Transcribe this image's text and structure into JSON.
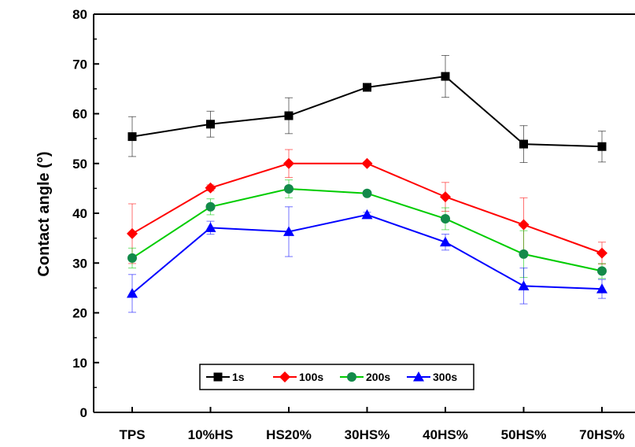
{
  "chart_data": {
    "type": "line",
    "title": "",
    "xlabel": "",
    "ylabel": "Contact angle (°)",
    "ylim": [
      0,
      80
    ],
    "yticks": [
      0,
      10,
      20,
      30,
      40,
      50,
      60,
      70,
      80
    ],
    "grid": false,
    "legend_position": "bottom-center",
    "categories": [
      "TPS",
      "10%HS",
      "HS20%",
      "30HS%",
      "40HS%",
      "50HS%",
      "70HS%"
    ],
    "series": [
      {
        "name": "1s",
        "color": "#000000",
        "marker": "square",
        "values": [
          55.4,
          57.9,
          59.6,
          65.3,
          67.5,
          53.9,
          53.4
        ],
        "errors": [
          4.0,
          2.6,
          3.6,
          0.6,
          4.2,
          3.7,
          3.1
        ]
      },
      {
        "name": "100s",
        "color": "#ff0000",
        "marker": "diamond",
        "values": [
          35.9,
          45.1,
          50.0,
          50.0,
          43.3,
          37.7,
          32.0
        ],
        "errors": [
          6.0,
          0.6,
          2.8,
          0.3,
          2.9,
          5.4,
          2.2
        ]
      },
      {
        "name": "200s",
        "color": "#00cc00",
        "marker_color": "#138a4a",
        "marker": "circle",
        "values": [
          31.0,
          41.3,
          44.9,
          44.0,
          38.9,
          31.8,
          28.4
        ],
        "errors": [
          2.0,
          1.6,
          1.8,
          0.4,
          2.2,
          4.7,
          1.5
        ]
      },
      {
        "name": "300s",
        "color": "#0000ff",
        "marker": "triangle",
        "values": [
          23.9,
          37.1,
          36.3,
          39.7,
          34.2,
          25.4,
          24.8
        ],
        "errors": [
          3.8,
          1.3,
          5.0,
          0.5,
          1.6,
          3.6,
          1.9
        ]
      }
    ]
  }
}
